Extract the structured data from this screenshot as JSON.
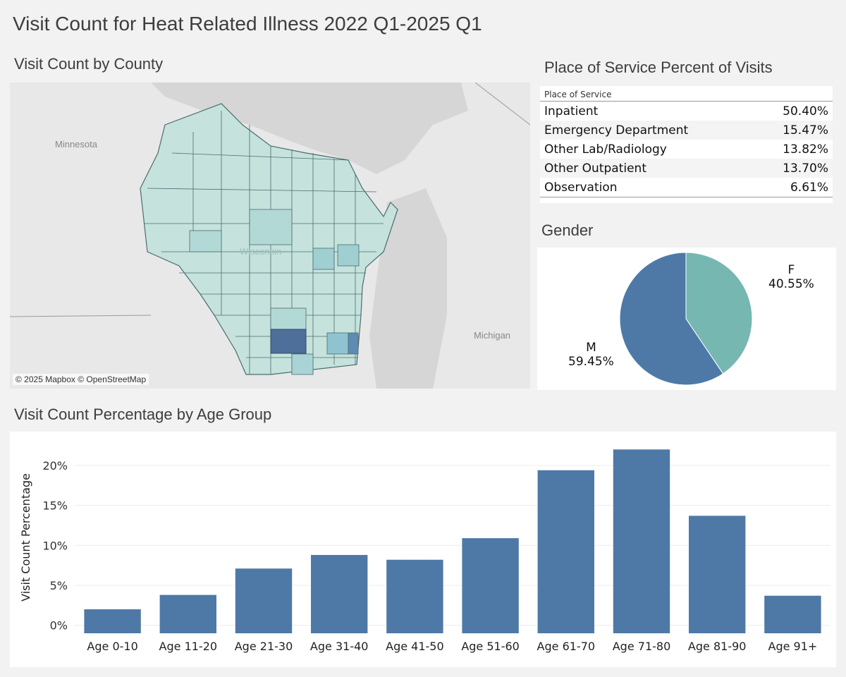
{
  "dashboard": {
    "title": "Visit Count for Heat Related Illness 2022 Q1-2025 Q1"
  },
  "map": {
    "title": "Visit Count by County",
    "labels": {
      "minnesota": "Minnesota",
      "michigan": "Michigan",
      "wisconsin": "Wisconsin"
    },
    "attribution": "© 2025 Mapbox © OpenStreetMap",
    "colors": {
      "base": "#c5e3dc",
      "mid": "#9fcfd0",
      "high": "#72b4c9",
      "max": "#4e6f9a"
    }
  },
  "place_of_service": {
    "title": "Place of Service Percent of Visits",
    "column_header": "Place of Service",
    "rows": [
      {
        "name": "Inpatient",
        "value": "50.40%"
      },
      {
        "name": "Emergency Department",
        "value": "15.47%"
      },
      {
        "name": "Other Lab/Radiology",
        "value": "13.82%"
      },
      {
        "name": "Other Outpatient",
        "value": "13.70%"
      },
      {
        "name": "Observation",
        "value": "6.61%"
      }
    ]
  },
  "gender": {
    "title": "Gender",
    "slices": [
      {
        "name": "F",
        "value": 40.55,
        "label": "40.55%",
        "color": "#76b7b2"
      },
      {
        "name": "M",
        "value": 59.45,
        "label": "59.45%",
        "color": "#4e79a7"
      }
    ]
  },
  "age": {
    "title": "Visit Count Percentage by Age Group"
  },
  "chart_data": {
    "type": "bar",
    "title": "Visit Count Percentage by Age Group",
    "xlabel": "",
    "ylabel": "Visit Count Percentage",
    "categories": [
      "Age 0-10",
      "Age 11-20",
      "Age 21-30",
      "Age 31-40",
      "Age 41-50",
      "Age 51-60",
      "Age 61-70",
      "Age 71-80",
      "Age 81-90",
      "Age 91+"
    ],
    "values": [
      2.0,
      3.8,
      7.1,
      8.8,
      8.2,
      10.9,
      19.4,
      22.0,
      13.7,
      3.7
    ],
    "yticks": [
      0,
      5,
      10,
      15,
      20
    ],
    "ytick_labels": [
      "0%",
      "5%",
      "10%",
      "15%",
      "20%"
    ],
    "ylim": [
      -1,
      23
    ],
    "bar_color": "#4e79a7",
    "grid": true
  }
}
